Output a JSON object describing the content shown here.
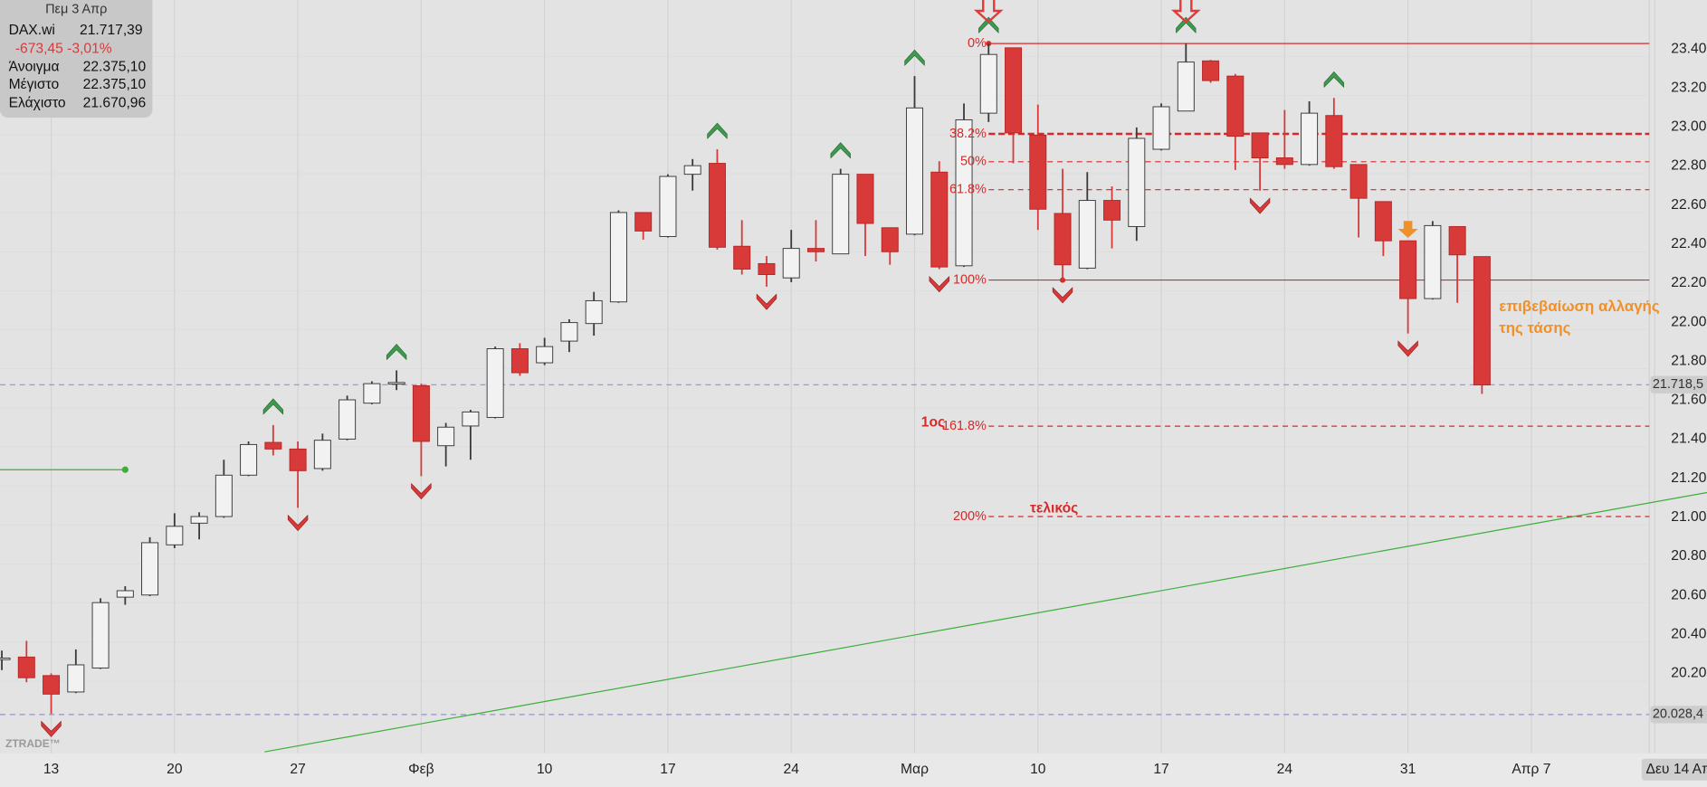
{
  "info": {
    "date": "Πεμ 3 Απρ",
    "symbol": "DAX.wi",
    "last": "21.717,39",
    "change": "-673,45 -3,01%",
    "rows": [
      [
        "Άνοιγμα",
        "22.375,10"
      ],
      [
        "Μέγιστο",
        "22.375,10"
      ],
      [
        "Ελάχιστο",
        "21.670,96"
      ]
    ]
  },
  "chart_data": {
    "type": "candlestick",
    "categories": [
      null,
      null,
      "13",
      null,
      null,
      null,
      null,
      "20",
      null,
      null,
      null,
      null,
      "27",
      null,
      null,
      null,
      null,
      "Φεβ",
      null,
      null,
      null,
      null,
      "10",
      null,
      null,
      null,
      null,
      "17",
      null,
      null,
      null,
      null,
      "24",
      null,
      null,
      null,
      null,
      "Μαρ",
      null,
      null,
      null,
      null,
      "10",
      null,
      null,
      null,
      null,
      "17",
      null,
      null,
      null,
      null,
      "24",
      null,
      null,
      null,
      null,
      "31",
      null,
      null,
      null,
      null,
      "Απρ 7",
      null,
      null,
      null,
      null,
      "Δευ 14 Απ"
    ],
    "open": [
      20312,
      20323,
      20228,
      20144,
      20267,
      20630,
      20641,
      20898,
      21009,
      21043,
      21255,
      21423,
      21389,
      21289,
      21440,
      21624,
      21724,
      21713,
      21406,
      21507,
      21551,
      21903,
      21831,
      21942,
      22032,
      22143,
      22601,
      22478,
      22797,
      22853,
      22428,
      22339,
      22266,
      22417,
      22389,
      22797,
      22523,
      22490,
      22808,
      22328,
      23110,
      23445,
      22998,
      22596,
      22316,
      22663,
      22529,
      22925,
      23121,
      23378,
      23300,
      23009,
      22881,
      22847,
      23098,
      22847,
      22657,
      22456,
      22160,
      22529,
      22375.1,
      null,
      null,
      null,
      null,
      null,
      null,
      null
    ],
    "high": [
      20356,
      20406,
      20239,
      20362,
      20624,
      20686,
      20937,
      21060,
      21065,
      21334,
      21428,
      21512,
      21428,
      21468,
      21663,
      21736,
      21792,
      21724,
      21523,
      21590,
      21914,
      21931,
      21959,
      22054,
      22194,
      22612,
      22601,
      22797,
      22875,
      22925,
      22562,
      22378,
      22512,
      22562,
      22825,
      22797,
      22523,
      23300,
      22864,
      23160,
      23467,
      23445,
      23154,
      22825,
      22808,
      22735,
      23037,
      23160,
      23467,
      23383,
      23311,
      23009,
      23126,
      23171,
      23188,
      22847,
      22657,
      22456,
      22557,
      22529,
      22375.1,
      null,
      null,
      null,
      null,
      null,
      null,
      null
    ],
    "low": [
      20256,
      20194,
      20032,
      20138,
      20262,
      20591,
      20635,
      20881,
      20926,
      21037,
      21250,
      21356,
      21088,
      21278,
      21434,
      21618,
      21691,
      21250,
      21300,
      21334,
      21546,
      21764,
      21819,
      21886,
      21970,
      22138,
      22462,
      22473,
      22713,
      22411,
      22283,
      22221,
      22244,
      22350,
      22389,
      22378,
      22333,
      22484,
      22311,
      22322,
      23065,
      22853,
      22512,
      22255,
      22311,
      22417,
      22456,
      22919,
      23121,
      23266,
      22819,
      22713,
      22825,
      22841,
      22825,
      22473,
      22378,
      21981,
      22155,
      22138,
      21670.96,
      null,
      null,
      null,
      null,
      null,
      null,
      null
    ],
    "close": [
      20318,
      20217,
      20133,
      20283,
      20602,
      20663,
      20909,
      20993,
      21043,
      21255,
      21412,
      21389,
      21278,
      21434,
      21641,
      21724,
      21730,
      21428,
      21501,
      21579,
      21903,
      21780,
      21914,
      22037,
      22149,
      22601,
      22506,
      22786,
      22841,
      22423,
      22311,
      22283,
      22417,
      22400,
      22797,
      22545,
      22400,
      23137,
      22322,
      23076,
      23411,
      23009,
      22618,
      22333,
      22663,
      22562,
      22981,
      23143,
      23372,
      23277,
      22992,
      22881,
      22847,
      23110,
      22836,
      22674,
      22456,
      22160,
      22534,
      22384,
      21717.39,
      null,
      null,
      null,
      null,
      null,
      null,
      null
    ],
    "signals": [
      null,
      null,
      "down",
      null,
      null,
      null,
      null,
      null,
      null,
      null,
      null,
      "up",
      "down",
      null,
      null,
      null,
      "up",
      "down",
      null,
      null,
      null,
      null,
      null,
      null,
      null,
      null,
      null,
      null,
      null,
      "up",
      null,
      "down",
      null,
      null,
      "up",
      null,
      null,
      "up",
      "down",
      null,
      "up",
      null,
      null,
      "down",
      null,
      null,
      null,
      null,
      "up",
      null,
      null,
      "down",
      null,
      null,
      "up",
      null,
      null,
      "down",
      null,
      null,
      null,
      null,
      null,
      null,
      null,
      null,
      null,
      null
    ],
    "arrows": [
      null,
      null,
      null,
      null,
      null,
      null,
      null,
      null,
      null,
      null,
      null,
      null,
      null,
      null,
      null,
      null,
      null,
      null,
      null,
      null,
      null,
      null,
      null,
      null,
      null,
      null,
      null,
      null,
      null,
      null,
      null,
      null,
      null,
      null,
      null,
      null,
      null,
      null,
      null,
      null,
      "#e03a3a",
      null,
      null,
      null,
      null,
      null,
      null,
      null,
      "#e03a3a",
      null,
      null,
      null,
      null,
      null,
      null,
      null,
      null,
      "#f0902a",
      null,
      null,
      null,
      null,
      null,
      null,
      null,
      null,
      null,
      null
    ],
    "up_color": "#f2f2f2",
    "up_edge": "#3a3a3a",
    "down_color": "#d83a3a",
    "down_edge": "#b52828",
    "up_signal_color": "#3f9a4f",
    "down_signal_color": "#d83a3a",
    "ylim": [
      19830,
      23690
    ],
    "yticks": [
      {
        "value": 20200,
        "label": "20.200"
      },
      {
        "value": 20400,
        "label": "20.400"
      },
      {
        "value": 20600,
        "label": "20.600"
      },
      {
        "value": 20800,
        "label": "20.800"
      },
      {
        "value": 21000,
        "label": "21.000"
      },
      {
        "value": 21200,
        "label": "21.200"
      },
      {
        "value": 21400,
        "label": "21.400"
      },
      {
        "value": 21600,
        "label": "21.600"
      },
      {
        "value": 21800,
        "label": "21.800"
      },
      {
        "value": 22000,
        "label": "22.000"
      },
      {
        "value": 22200,
        "label": "22.200"
      },
      {
        "value": 22400,
        "label": "22.400"
      },
      {
        "value": 22600,
        "label": "22.600"
      },
      {
        "value": 22800,
        "label": "22.800"
      },
      {
        "value": 23000,
        "label": "23.000"
      },
      {
        "value": 23200,
        "label": "23.200"
      },
      {
        "value": 23400,
        "label": "23.400"
      }
    ],
    "grid": true,
    "fib_color": "#d62a2a",
    "fib_levels": [
      {
        "value": 23467,
        "label": "0%",
        "style": "solid"
      },
      {
        "value": 23004,
        "label": "38.2%",
        "style": "bold-dashed"
      },
      {
        "value": 22861,
        "label": "50%",
        "style": "dashed"
      },
      {
        "value": 22718,
        "label": "61.8%",
        "style": "dashed"
      },
      {
        "value": 22255,
        "label": "100%",
        "style": "solid"
      },
      {
        "value": 21506,
        "label": "161.8%",
        "style": "dashed",
        "note": "1ος",
        "note_side": "left"
      },
      {
        "value": 21043,
        "label": "200%",
        "style": "dashed",
        "note": "τελικός",
        "note_side": "right"
      }
    ],
    "price_lines": [
      {
        "value": 21718.5,
        "label": "21.718,5"
      },
      {
        "value": 20028.4,
        "label": "20.028,4"
      }
    ],
    "price_line_color": "#8f8fe8",
    "trendline": {
      "color": "#3cae3c",
      "values": [
        19837,
        21166
      ]
    },
    "level_line": {
      "color": "#3cae3c",
      "value": 21283
    },
    "annotation": [
      "επιβεβαίωση αλλαγής",
      "της τάσης"
    ],
    "annotation_color": "#f0902a",
    "watermark": "ZTRADE™"
  }
}
